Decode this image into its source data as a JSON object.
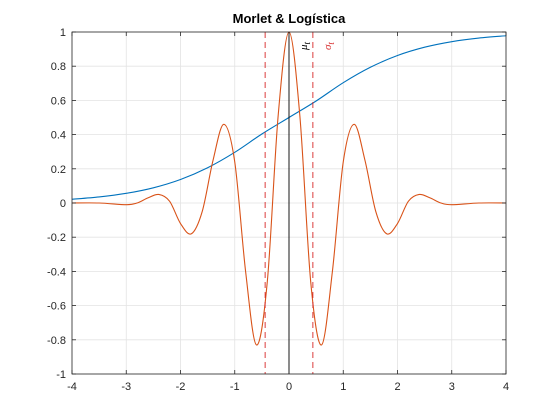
{
  "chart_data": {
    "type": "line",
    "title": "Morlet & Logística",
    "xlim": [
      -4,
      4
    ],
    "ylim": [
      -1,
      1
    ],
    "xticks": [
      -4,
      -3,
      -2,
      -1,
      0,
      1,
      2,
      3,
      4
    ],
    "yticks": [
      -1,
      -0.8,
      -0.6,
      -0.4,
      -0.2,
      0,
      0.2,
      0.4,
      0.6,
      0.8,
      1
    ],
    "xtick_labels": [
      "-4",
      "-3",
      "-2",
      "-1",
      "0",
      "1",
      "2",
      "3",
      "4"
    ],
    "ytick_labels": [
      "-1",
      "-0.8",
      "-0.6",
      "-0.4",
      "-0.2",
      "0",
      "0.2",
      "0.4",
      "0.6",
      "0.8",
      "1"
    ],
    "grid": true,
    "series": [
      {
        "color": "#0072BD",
        "x": [
          -4,
          -3.5,
          -3,
          -2.5,
          -2,
          -1.5,
          -1,
          -0.5,
          0,
          0.5,
          1,
          1.5,
          2,
          2.5,
          3,
          3.5,
          4
        ],
        "y": [
          0.0219,
          0.0353,
          0.0565,
          0.089,
          0.1375,
          0.2063,
          0.2965,
          0.4035,
          0.5,
          0.5965,
          0.7035,
          0.7937,
          0.8625,
          0.911,
          0.9435,
          0.9647,
          0.9781
        ]
      },
      {
        "color": "#D95319",
        "x": [
          -4,
          -3.5,
          -3,
          -2.8,
          -2.6,
          -2.4,
          -2.2,
          -2.0,
          -1.8,
          -1.6,
          -1.4,
          -1.2,
          -1.0,
          -0.8,
          -0.6,
          -0.4,
          -0.2,
          0,
          0.2,
          0.4,
          0.6,
          0.8,
          1.0,
          1.2,
          1.4,
          1.6,
          1.8,
          2.0,
          2.2,
          2.4,
          2.6,
          2.8,
          3,
          3.5,
          4
        ],
        "y": [
          0.0,
          0.0,
          -0.01,
          -0.0,
          0.03,
          0.05,
          0.01,
          -0.12,
          -0.18,
          -0.05,
          0.25,
          0.46,
          0.24,
          -0.4,
          -0.83,
          -0.46,
          0.51,
          1.0,
          0.51,
          -0.46,
          -0.83,
          -0.4,
          0.24,
          0.46,
          0.25,
          -0.05,
          -0.18,
          -0.12,
          0.01,
          0.05,
          0.03,
          -0.0,
          -0.01,
          0.0,
          0.0
        ]
      }
    ],
    "vlines": [
      {
        "x": 0,
        "color": "#000000",
        "style": "solid"
      },
      {
        "x": -0.44,
        "color": "#D62728",
        "style": "dashed"
      },
      {
        "x": 0.44,
        "color": "#D62728",
        "style": "dashed"
      }
    ],
    "annotations": {
      "mu": "μ",
      "mu_sub": "t",
      "sigma": "σ",
      "sigma_sub": "t"
    }
  }
}
